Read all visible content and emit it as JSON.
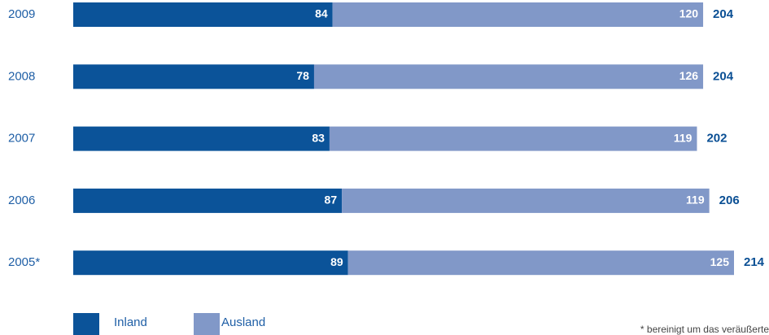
{
  "chart_data": {
    "type": "stacked-bar-horizontal",
    "categories": [
      "2009",
      "2008",
      "2007",
      "2006",
      "2005*"
    ],
    "series": [
      {
        "name": "Inland",
        "color": "#0b5399",
        "values": [
          84,
          78,
          83,
          87,
          89
        ]
      },
      {
        "name": "Ausland",
        "color": "#8198c8",
        "values": [
          120,
          126,
          119,
          119,
          125
        ]
      }
    ],
    "totals": [
      204,
      204,
      202,
      206,
      214
    ],
    "footnote": "* bereinigt um das veräußerte"
  }
}
